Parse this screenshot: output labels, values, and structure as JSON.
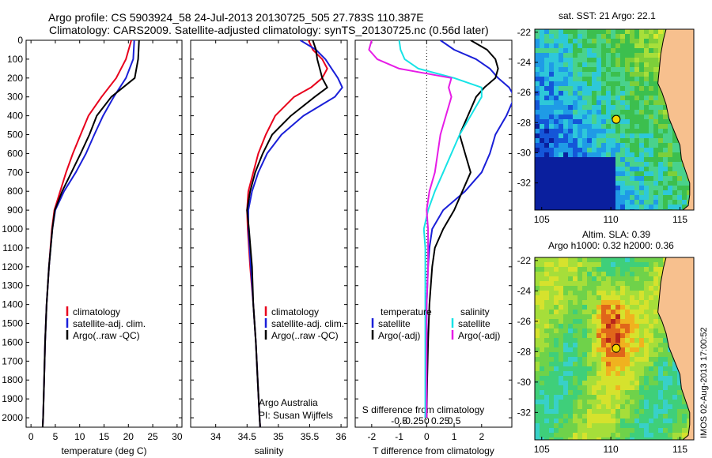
{
  "figure": {
    "title_line1": "Argo profile: CS 5903924_58 24-Jul-2013 20130725_505 27.783S 110.387E",
    "title_line2": "Climatology: CARS2009. Satellite-adjusted climatology: synTS_20130725.nc (0.56d later)",
    "side_stamp": "IMOS 02-Aug-2013 17:00:52",
    "credit_line1": "Argo Australia",
    "credit_line2": "PI: Susan Wijffels"
  },
  "colors": {
    "climatology": "#e8001c",
    "satellite": "#1a1fd8",
    "argo": "#000000",
    "sal_satellite": "#17e3e6",
    "sal_argo": "#e61ce6",
    "land": "#f7c08e"
  },
  "chart_data": [
    {
      "type": "line",
      "id": "temperature",
      "xlabel": "temperature (deg C)",
      "xlim": [
        -1,
        31
      ],
      "xticks": [
        0,
        5,
        10,
        15,
        20,
        25,
        30
      ],
      "ylim": [
        2050,
        0
      ],
      "yticks": [
        0,
        100,
        200,
        300,
        400,
        500,
        600,
        700,
        800,
        900,
        1000,
        1100,
        1200,
        1300,
        1400,
        1500,
        1600,
        1700,
        1800,
        1900,
        2000
      ],
      "depth": [
        0,
        100,
        200,
        300,
        400,
        500,
        600,
        700,
        800,
        900,
        1000,
        1200,
        1400,
        1600,
        1800,
        2000,
        2050
      ],
      "legend": [
        "climatology",
        "satellite-adj. clim.",
        "Argo(..raw -QC)"
      ],
      "series": [
        {
          "name": "climatology",
          "color_key": "climatology",
          "values": [
            20.6,
            19.5,
            17.5,
            14.5,
            11.8,
            10.2,
            8.6,
            7.2,
            6.0,
            4.8,
            4.3,
            3.7,
            3.2,
            2.9,
            2.7,
            2.5,
            2.4
          ]
        },
        {
          "name": "satellite-adj. clim.",
          "color_key": "satellite",
          "values": [
            21.2,
            21.0,
            19.5,
            17.0,
            14.8,
            13.0,
            11.3,
            9.2,
            6.8,
            5.0,
            4.4,
            3.7,
            3.2,
            2.9,
            2.7,
            2.5,
            2.4
          ]
        },
        {
          "name": "Argo(..raw -QC)",
          "color_key": "argo",
          "values": [
            22.2,
            22.0,
            21.3,
            16.5,
            13.5,
            12.0,
            10.2,
            8.3,
            6.4,
            4.9,
            4.4,
            3.7,
            3.2,
            2.9,
            2.7,
            2.5,
            2.4
          ]
        }
      ]
    },
    {
      "type": "line",
      "id": "salinity",
      "xlabel": "salinity",
      "xlim": [
        33.6,
        36.1
      ],
      "xticks": [
        34,
        34.5,
        35,
        35.5,
        36
      ],
      "ylim": [
        2050,
        0
      ],
      "depth": [
        0,
        50,
        100,
        150,
        200,
        250,
        300,
        400,
        500,
        600,
        700,
        800,
        900,
        1000,
        1200,
        1400,
        1600,
        1800,
        2000,
        2050
      ],
      "legend": [
        "climatology",
        "satellite-adj. clim.",
        "Argo(..raw -QC)"
      ],
      "series": [
        {
          "name": "climatology",
          "color_key": "climatology",
          "values": [
            35.48,
            35.55,
            35.7,
            35.78,
            35.7,
            35.52,
            35.25,
            34.95,
            34.8,
            34.68,
            34.6,
            34.52,
            34.5,
            34.51,
            34.55,
            34.6,
            34.64,
            34.67,
            34.7,
            34.71
          ]
        },
        {
          "name": "satellite-adj. clim.",
          "color_key": "satellite",
          "values": [
            35.35,
            35.6,
            35.75,
            35.85,
            35.95,
            36.02,
            35.9,
            35.4,
            35.05,
            34.82,
            34.68,
            34.58,
            34.52,
            34.52,
            34.56,
            34.6,
            34.64,
            34.67,
            34.7,
            34.71
          ]
        },
        {
          "name": "Argo(..raw -QC)",
          "color_key": "argo",
          "values": [
            35.55,
            35.6,
            35.62,
            35.66,
            35.7,
            35.78,
            35.58,
            35.2,
            34.9,
            34.75,
            34.63,
            34.55,
            34.5,
            34.53,
            34.58,
            34.6,
            34.64,
            34.67,
            34.7,
            34.71
          ]
        }
      ]
    },
    {
      "type": "line",
      "id": "difference",
      "xlabel": "T difference from climatology",
      "top_xlabel": "S difference from climatology",
      "xlim": [
        -2.6,
        3.1
      ],
      "xticks": [
        -2,
        -1,
        0,
        1,
        2
      ],
      "s_ticks": [
        -0.5,
        -0.25,
        0,
        0.25,
        0.5
      ],
      "s_tick_labels": [
        "-0.5",
        "-0.25",
        "0",
        "0.25",
        "0.5"
      ],
      "ylim": [
        2050,
        0
      ],
      "depth": [
        0,
        50,
        100,
        150,
        200,
        250,
        300,
        400,
        500,
        600,
        700,
        800,
        900,
        1000,
        1100,
        1200,
        1400,
        1600,
        1800,
        2000
      ],
      "legend_titles": [
        "temperature",
        "salinity"
      ],
      "legend": [
        "satellite",
        "Argo(-adj)",
        "satellite",
        "Argo(-adj)"
      ],
      "series": [
        {
          "name": "satellite",
          "quantity": "temperature",
          "color_key": "satellite",
          "values": [
            0.5,
            1.0,
            1.8,
            2.3,
            2.6,
            3.0,
            3.2,
            2.9,
            2.5,
            2.3,
            2.0,
            1.4,
            0.6,
            0.2,
            0.1,
            0.05,
            0.0,
            0.0,
            0.0,
            -0.05
          ]
        },
        {
          "name": "Argo(-adj)",
          "quantity": "temperature",
          "color_key": "argo",
          "values": [
            1.6,
            2.2,
            2.5,
            2.6,
            2.5,
            2.1,
            1.8,
            1.5,
            1.2,
            1.4,
            1.6,
            1.3,
            1.0,
            0.6,
            0.3,
            0.2,
            0.1,
            0.05,
            0.02,
            0.0
          ]
        },
        {
          "name": "satellite",
          "quantity": "salinity",
          "color_key": "sal_satellite",
          "values": [
            -1.0,
            -0.95,
            -0.8,
            -0.3,
            1.0,
            2.0,
            2.0,
            1.6,
            1.2,
            0.9,
            0.6,
            0.3,
            0.05,
            -0.1,
            -0.05,
            -0.05,
            -0.05,
            -0.05,
            -0.05,
            -0.05
          ]
        },
        {
          "name": "Argo(-adj)",
          "quantity": "salinity",
          "color_key": "sal_argo",
          "values": [
            -2.0,
            -2.1,
            -1.8,
            -1.0,
            0.9,
            0.8,
            0.9,
            0.7,
            0.5,
            0.4,
            0.3,
            0.1,
            0.0,
            0.05,
            0.05,
            0.05,
            0.0,
            0.0,
            0.0,
            0.0
          ]
        }
      ]
    },
    {
      "type": "heatmap",
      "id": "sst_map",
      "title": "sat. SST: 21  Argo: 22.1",
      "xlim": [
        104.5,
        116
      ],
      "xticks": [
        105,
        110,
        115
      ],
      "ylim": [
        -33.8,
        -21.8
      ],
      "yticks": [
        -22,
        -24,
        -26,
        -28,
        -30,
        -32
      ],
      "float_position": {
        "lon": 110.387,
        "lat": -27.783
      }
    },
    {
      "type": "heatmap",
      "id": "sla_map",
      "title_line1": "Altim. SLA: 0.39",
      "title_line2": "Argo h1000: 0.32 h2000: 0.36",
      "xlim": [
        104.5,
        116
      ],
      "xticks": [
        105,
        110,
        115
      ],
      "ylim": [
        -33.8,
        -21.8
      ],
      "yticks": [
        -22,
        -24,
        -26,
        -28,
        -30,
        -32
      ],
      "float_position": {
        "lon": 110.387,
        "lat": -27.783
      }
    }
  ]
}
